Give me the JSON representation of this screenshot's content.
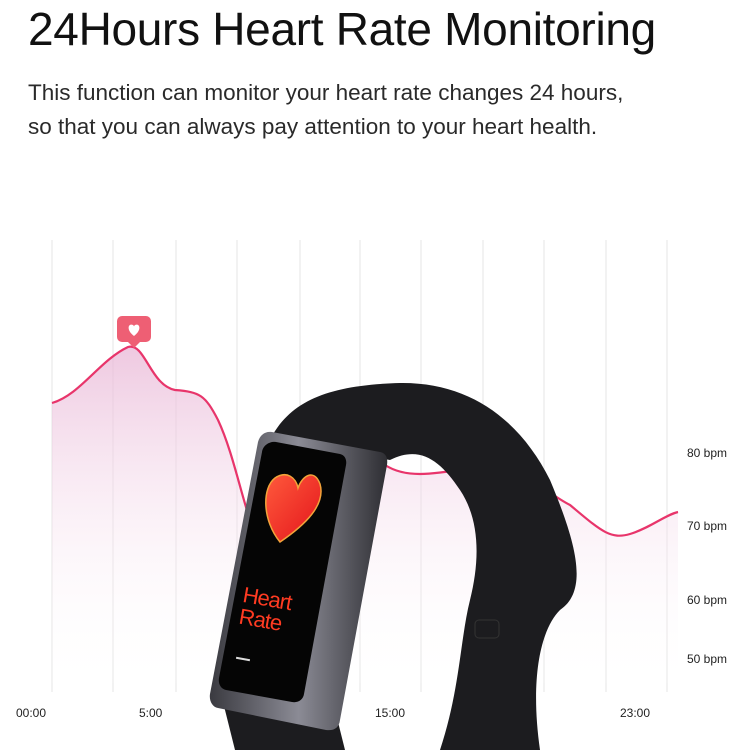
{
  "title": "24Hours Heart Rate Monitoring",
  "description": {
    "line1": "This function can monitor your heart rate changes 24 hours,",
    "line2": "so that you can always pay attention to your heart health."
  },
  "chart": {
    "y_labels": [
      "80 bpm",
      "70 bpm",
      "60 bpm",
      "50 bpm"
    ],
    "x_labels": [
      "00:00",
      "5:00",
      "15:00",
      "23:00"
    ],
    "line_color": "#e8356b",
    "marker_icon": "heart-badge-icon"
  },
  "watch_screen": {
    "text_line1": "Heart",
    "text_line2": "Rate",
    "icon": "heart-icon"
  }
}
